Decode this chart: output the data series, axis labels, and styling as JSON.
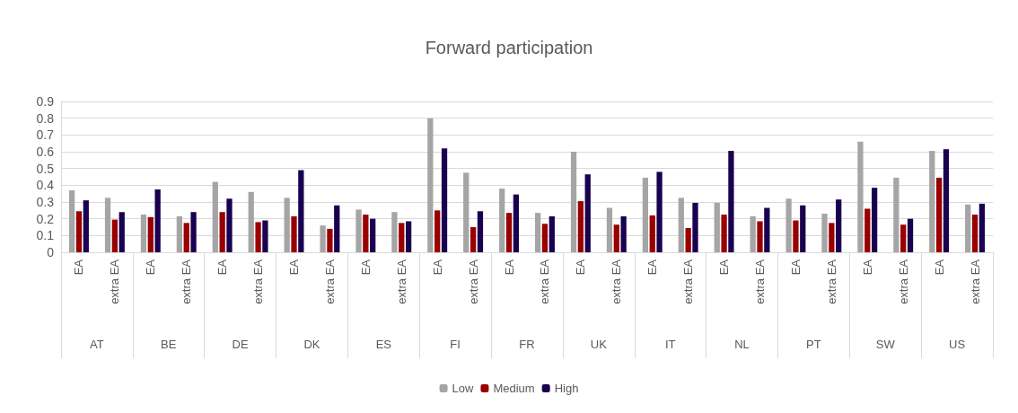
{
  "chart_data": {
    "type": "bar",
    "title": "Forward participation",
    "categories": [
      "EA",
      "extra EA",
      "EA",
      "extra EA",
      "EA",
      "extra EA",
      "EA",
      "extra EA",
      "EA",
      "extra EA",
      "EA",
      "extra EA",
      "EA",
      "extra EA",
      "EA",
      "extra EA",
      "EA",
      "extra EA",
      "EA",
      "extra EA",
      "EA",
      "extra EA",
      "EA",
      "extra EA",
      "EA",
      "extra EA"
    ],
    "annotations": [
      "AT",
      "BE",
      "DE",
      "DK",
      "ES",
      "FI",
      "FR",
      "UK",
      "IT",
      "NL",
      "PT",
      "SW",
      "US"
    ],
    "series": [
      {
        "name": "Low",
        "color": "#a5a5a5",
        "values": [
          0.37,
          0.325,
          0.225,
          0.215,
          0.42,
          0.36,
          0.325,
          0.16,
          0.255,
          0.24,
          0.8,
          0.475,
          0.38,
          0.235,
          0.6,
          0.265,
          0.445,
          0.325,
          0.295,
          0.215,
          0.32,
          0.23,
          0.66,
          0.445,
          0.605,
          0.285
        ]
      },
      {
        "name": "Medium",
        "color": "#990000",
        "values": [
          0.245,
          0.195,
          0.21,
          0.175,
          0.24,
          0.18,
          0.215,
          0.14,
          0.225,
          0.175,
          0.25,
          0.15,
          0.235,
          0.17,
          0.305,
          0.165,
          0.22,
          0.145,
          0.225,
          0.185,
          0.19,
          0.175,
          0.26,
          0.165,
          0.445,
          0.225
        ]
      },
      {
        "name": "High",
        "color": "#1a0050",
        "values": [
          0.31,
          0.24,
          0.375,
          0.24,
          0.32,
          0.19,
          0.49,
          0.28,
          0.2,
          0.185,
          0.62,
          0.245,
          0.345,
          0.215,
          0.465,
          0.215,
          0.48,
          0.295,
          0.605,
          0.265,
          0.28,
          0.315,
          0.385,
          0.2,
          0.615,
          0.29
        ]
      }
    ],
    "ylim": [
      0,
      0.9
    ],
    "yticks": [
      0,
      0.1,
      0.2,
      0.3,
      0.4,
      0.5,
      0.6,
      0.7,
      0.8,
      0.9
    ],
    "grid": "y",
    "legend": "bottom"
  }
}
